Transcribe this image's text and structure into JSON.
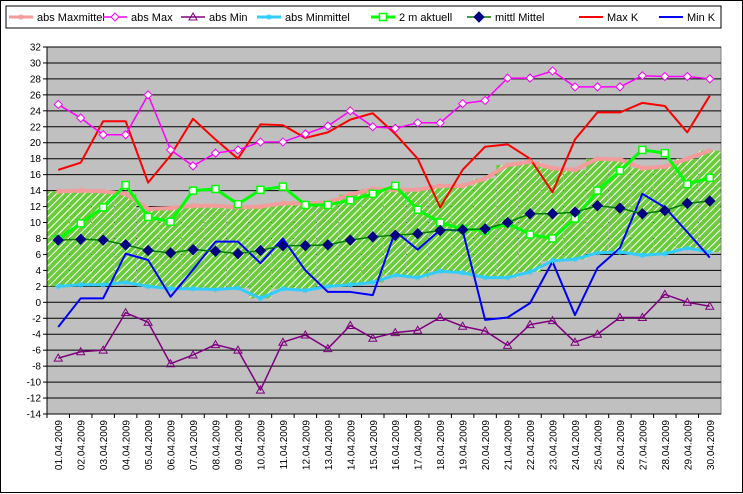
{
  "chart_data": {
    "type": "line",
    "x": [
      "01.04.2009",
      "02.04.2009",
      "03.04.2009",
      "04.04.2009",
      "05.04.2009",
      "06.04.2009",
      "07.04.2009",
      "08.04.2009",
      "09.04.2009",
      "10.04.2009",
      "11.04.2009",
      "12.04.2009",
      "13.04.2009",
      "14.04.2009",
      "15.04.2009",
      "16.04.2009",
      "17.04.2009",
      "18.04.2009",
      "19.04.2009",
      "20.04.2009",
      "21.04.2009",
      "22.04.2009",
      "23.04.2009",
      "24.04.2009",
      "25.04.2009",
      "26.04.2009",
      "27.04.2009",
      "28.04.2009",
      "29.04.2009",
      "30.04.2009"
    ],
    "yticks": [
      "32",
      "30",
      "28",
      "26",
      "24",
      "22",
      "20",
      "18",
      "16",
      "14",
      "12",
      "10",
      "8",
      "6",
      "4",
      "2",
      "0",
      "-2",
      "-4",
      "-6",
      "-8",
      "-10",
      "-12",
      "-14"
    ],
    "ylim": [
      -14,
      32
    ],
    "grid": true,
    "legend_position": "top",
    "band_color": "#6acc3a",
    "band_hatch_color": "#ffffff",
    "plot_background": "#c0c0c0",
    "series": [
      {
        "name": "abs Maxmittel",
        "color": "#f49b9b",
        "marker": "star",
        "width": 4,
        "values": [
          13.9,
          14.0,
          13.9,
          13.6,
          11.7,
          11.8,
          12.1,
          12.1,
          11.9,
          12.0,
          12.4,
          12.4,
          12.5,
          13.5,
          14.2,
          14.1,
          14.1,
          14.6,
          14.6,
          15.5,
          17.2,
          17.6,
          16.8,
          16.6,
          18.0,
          17.9,
          16.8,
          17.0,
          18.0,
          19.0
        ]
      },
      {
        "name": "abs Max",
        "color": "#ff00ff",
        "marker": "diamond-open",
        "width": 1.5,
        "values": [
          24.8,
          23.1,
          21.0,
          21.0,
          26.0,
          19.1,
          17.1,
          18.7,
          19.1,
          20.1,
          20.1,
          21.1,
          22.1,
          24.0,
          22.0,
          21.8,
          22.5,
          22.5,
          24.9,
          25.3,
          28.1,
          28.1,
          29.0,
          27.0,
          27.0,
          27.0,
          28.4,
          28.3,
          28.3,
          28.0
        ]
      },
      {
        "name": "abs Min",
        "color": "#800080",
        "marker": "triangle-open",
        "width": 1.5,
        "values": [
          -7.0,
          -6.2,
          -6.0,
          -1.3,
          -2.5,
          -7.7,
          -6.6,
          -5.3,
          -6.0,
          -11.0,
          -5.0,
          -4.1,
          -5.8,
          -2.9,
          -4.5,
          -3.8,
          -3.5,
          -1.9,
          -3.0,
          -3.6,
          -5.4,
          -2.8,
          -2.3,
          -5.0,
          -4.0,
          -1.9,
          -1.9,
          1.0,
          0.0,
          -0.5
        ]
      },
      {
        "name": "abs Minmittel",
        "color": "#33ccff",
        "marker": "star",
        "width": 3,
        "values": [
          2.0,
          2.2,
          2.2,
          2.5,
          2.0,
          1.7,
          1.7,
          1.6,
          1.8,
          0.5,
          1.7,
          1.5,
          2.0,
          2.2,
          2.5,
          3.4,
          3.1,
          3.9,
          3.7,
          3.1,
          3.1,
          3.8,
          5.2,
          5.4,
          6.2,
          6.3,
          5.9,
          6.1,
          6.8,
          6.3
        ]
      },
      {
        "name": "2 m aktuell",
        "color": "#00ff00",
        "marker": "square-open",
        "width": 3,
        "values": [
          7.9,
          9.9,
          11.9,
          14.7,
          10.7,
          10.1,
          14.0,
          14.2,
          12.3,
          14.1,
          14.5,
          12.2,
          12.2,
          12.8,
          13.6,
          14.6,
          11.6,
          10.0,
          9.2,
          9.0,
          9.9,
          8.5,
          8.0,
          10.5,
          14.0,
          16.5,
          19.1,
          18.7,
          14.8,
          15.6
        ]
      },
      {
        "name": "mittl Mittel",
        "color": "#008000",
        "marker": "diamond-filled",
        "marker_color": "#000080",
        "width": 1.5,
        "values": [
          7.8,
          7.9,
          7.8,
          7.2,
          6.5,
          6.2,
          6.6,
          6.4,
          6.1,
          6.5,
          7.1,
          7.1,
          7.2,
          7.8,
          8.2,
          8.4,
          8.6,
          9.0,
          9.1,
          9.2,
          10.0,
          11.1,
          11.1,
          11.3,
          12.1,
          11.8,
          11.1,
          11.5,
          12.4,
          12.7
        ]
      },
      {
        "name": "Max K",
        "color": "#ff0000",
        "marker": "none",
        "width": 2,
        "values": [
          16.6,
          17.5,
          22.7,
          22.7,
          15.0,
          18.4,
          23.0,
          20.4,
          18.0,
          22.3,
          22.2,
          20.6,
          21.3,
          22.9,
          23.7,
          21.1,
          18.0,
          11.9,
          16.6,
          19.5,
          19.8,
          18.0,
          13.8,
          20.4,
          23.8,
          23.8,
          25.0,
          24.6,
          21.3,
          25.9
        ]
      },
      {
        "name": "Min K",
        "color": "#0000ff",
        "marker": "none",
        "width": 2,
        "values": [
          -3.1,
          0.5,
          0.5,
          6.1,
          5.3,
          0.7,
          4.1,
          7.6,
          7.6,
          4.9,
          8.0,
          4.0,
          1.3,
          1.3,
          0.9,
          8.9,
          6.6,
          9.1,
          9.0,
          -2.2,
          -1.9,
          -0.1,
          5.1,
          -1.6,
          4.3,
          6.8,
          13.6,
          11.9,
          8.8,
          5.6
        ]
      }
    ]
  }
}
